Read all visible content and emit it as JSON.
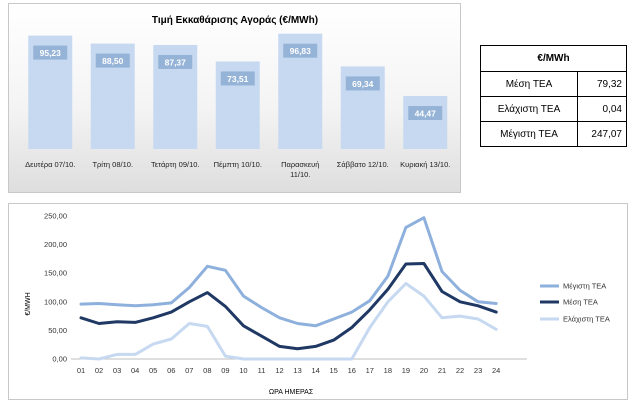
{
  "chart_data": [
    {
      "type": "bar",
      "title": "Τιμή Εκκαθάρισης Αγοράς (€/MWh)",
      "categories": [
        "Δευτέρα 07/10.",
        "Τρίτη 08/10.",
        "Τετάρτη 09/10.",
        "Πέμπτη 10/10.",
        "Παρασκευή 11/10.",
        "Σάββατο 12/10.",
        "Κυριακή 13/10."
      ],
      "values": [
        95.23,
        88.5,
        87.37,
        73.51,
        96.83,
        69.34,
        44.47
      ],
      "value_labels": [
        "95,23",
        "88,50",
        "87,37",
        "73,51",
        "96,83",
        "69,34",
        "44,47"
      ],
      "ylim": [
        0,
        110
      ],
      "bar_color": "#c6d9f1",
      "label_box_color": "#95b3d7"
    },
    {
      "type": "line",
      "xlabel": "ΩΡΑ ΗΜΕΡΑΣ",
      "ylabel": "€/MWH",
      "x": [
        "01",
        "02",
        "03",
        "04",
        "05",
        "06",
        "07",
        "08",
        "09",
        "10",
        "11",
        "12",
        "13",
        "14",
        "15",
        "16",
        "17",
        "18",
        "19",
        "20",
        "21",
        "22",
        "23",
        "24"
      ],
      "yticks": [
        "0,00",
        "50,00",
        "100,00",
        "150,00",
        "200,00",
        "250,00"
      ],
      "ylim": [
        0,
        250
      ],
      "grid": false,
      "legend": "right",
      "series": [
        {
          "name": "Μέγιστη ΤΕΑ",
          "color": "#8eb0dc",
          "values": [
            96,
            97,
            95,
            93,
            95,
            98,
            125,
            162,
            155,
            110,
            90,
            72,
            62,
            58,
            70,
            82,
            102,
            145,
            230,
            247,
            153,
            120,
            100,
            97
          ]
        },
        {
          "name": "Μέση ΤΕΑ",
          "color": "#1f3864",
          "values": [
            72,
            62,
            65,
            64,
            72,
            82,
            100,
            116,
            92,
            58,
            40,
            22,
            18,
            22,
            33,
            55,
            86,
            122,
            166,
            167,
            118,
            100,
            93,
            82
          ]
        },
        {
          "name": "Ελάχιστη ΤΕΑ",
          "color": "#c6d9f1",
          "values": [
            2,
            0,
            8,
            8,
            26,
            35,
            62,
            57,
            5,
            0,
            0,
            0,
            0,
            0,
            0,
            0,
            55,
            100,
            132,
            110,
            72,
            75,
            70,
            52
          ]
        }
      ]
    }
  ],
  "stats_table": {
    "header": "€/MWh",
    "rows": [
      {
        "label": "Μέση ΤΕΑ",
        "value": "79,32"
      },
      {
        "label": "Ελάχιστη ΤΕΑ",
        "value": "0,04"
      },
      {
        "label": "Μέγιστη ΤΕΑ",
        "value": "247,07"
      }
    ]
  }
}
